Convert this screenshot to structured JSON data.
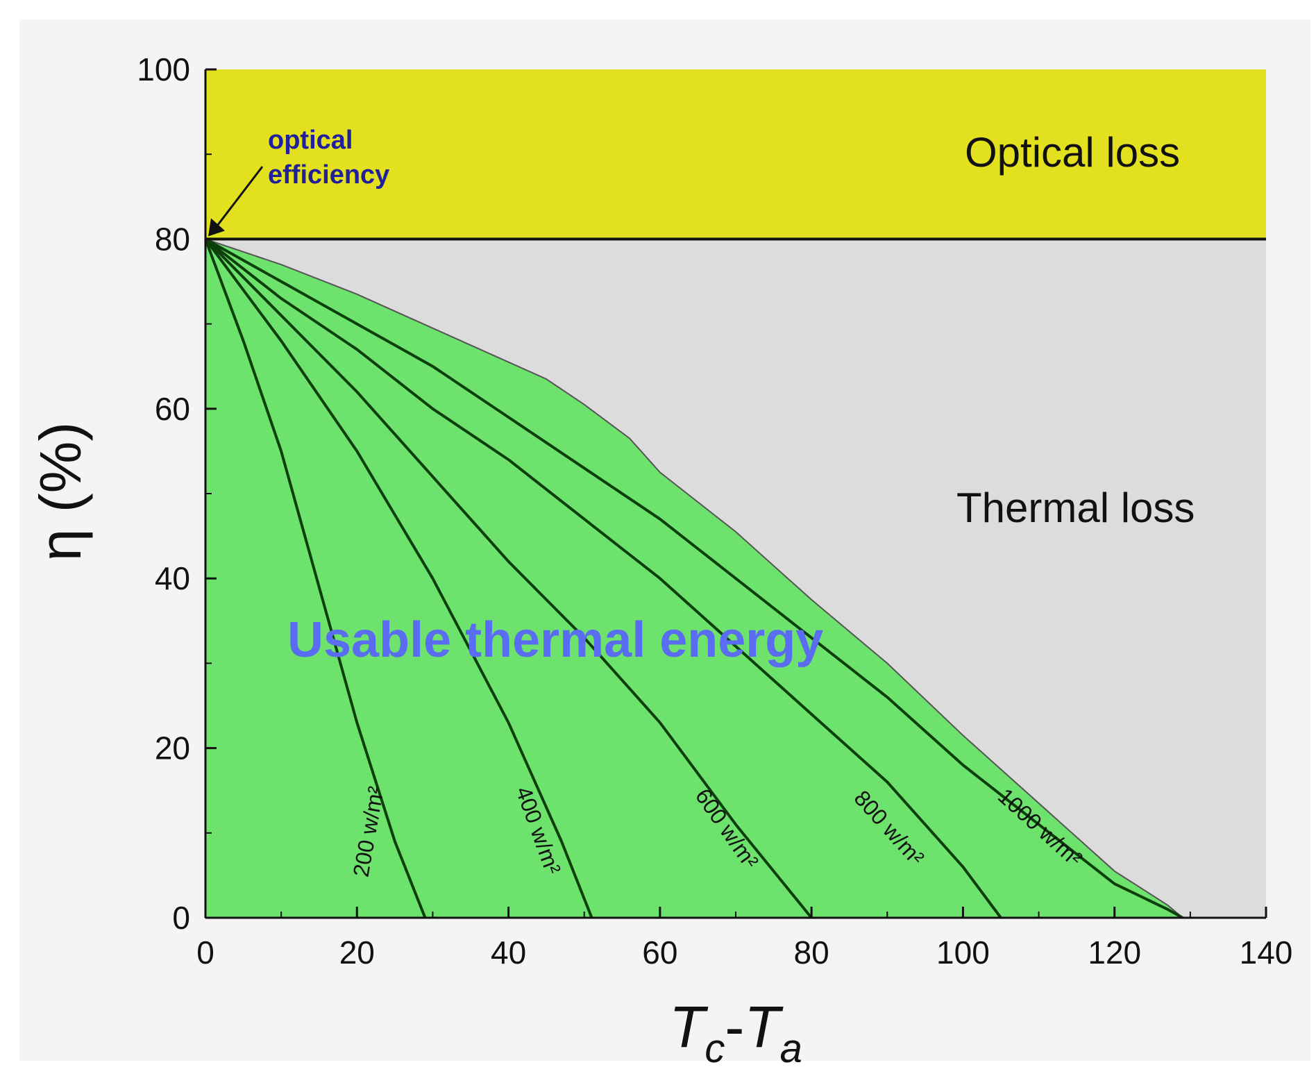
{
  "chart_data": {
    "type": "area",
    "xlim": [
      0,
      140
    ],
    "ylim": [
      0,
      100
    ],
    "x_ticks": [
      "0",
      "20",
      "40",
      "60",
      "80",
      "100",
      "120",
      "140"
    ],
    "y_ticks": [
      "0",
      "20",
      "40",
      "60",
      "80",
      "100"
    ],
    "ylabel": "η (%)",
    "xlabel": {
      "t1": "T",
      "s1": "c",
      "dash": "-",
      "t2": "T",
      "s2": "a"
    },
    "optical_efficiency": 80,
    "regions": {
      "optical_loss": {
        "label": "Optical loss",
        "color": "#e3e01f"
      },
      "thermal_loss": {
        "label": "Thermal loss",
        "color": "#dcdcdc"
      },
      "usable": {
        "label": "Usable thermal energy",
        "color": "#6de26d"
      }
    },
    "annotation": {
      "line1": "optical",
      "line2": "efficiency"
    },
    "envelope": {
      "x": [
        0,
        10,
        20,
        30,
        40,
        45,
        50,
        56,
        60,
        70,
        80,
        90,
        100,
        110,
        120,
        127,
        129
      ],
      "y": [
        80,
        77,
        73.5,
        69.5,
        65.5,
        63.5,
        60.5,
        56.5,
        52.5,
        45.5,
        37.5,
        30,
        21.5,
        13.5,
        5.5,
        1.5,
        0
      ]
    },
    "series": [
      {
        "name": "200 w/m²",
        "x": [
          0,
          5,
          10,
          15,
          20,
          25,
          29
        ],
        "y": [
          80,
          68,
          55,
          39,
          23,
          9,
          0
        ]
      },
      {
        "name": "400 w/m²",
        "x": [
          0,
          10,
          20,
          30,
          40,
          47,
          51
        ],
        "y": [
          80,
          68,
          55,
          40,
          23,
          9,
          0
        ]
      },
      {
        "name": "600 w/m²",
        "x": [
          0,
          10,
          20,
          30,
          40,
          50,
          60,
          70,
          80
        ],
        "y": [
          80,
          71,
          62,
          52,
          42,
          33,
          23,
          11,
          0
        ]
      },
      {
        "name": "800 w/m²",
        "x": [
          0,
          10,
          20,
          30,
          40,
          50,
          60,
          70,
          80,
          90,
          100,
          105
        ],
        "y": [
          80,
          73,
          67,
          60,
          54,
          47,
          40,
          32,
          24,
          16,
          6,
          0
        ]
      },
      {
        "name": "1000 w/m²",
        "x": [
          0,
          10,
          20,
          30,
          40,
          50,
          60,
          70,
          80,
          90,
          100,
          110,
          120,
          127,
          129
        ],
        "y": [
          80,
          75,
          70,
          65,
          59,
          53,
          47,
          40,
          33,
          26,
          18,
          11,
          4,
          1,
          0
        ]
      }
    ]
  }
}
